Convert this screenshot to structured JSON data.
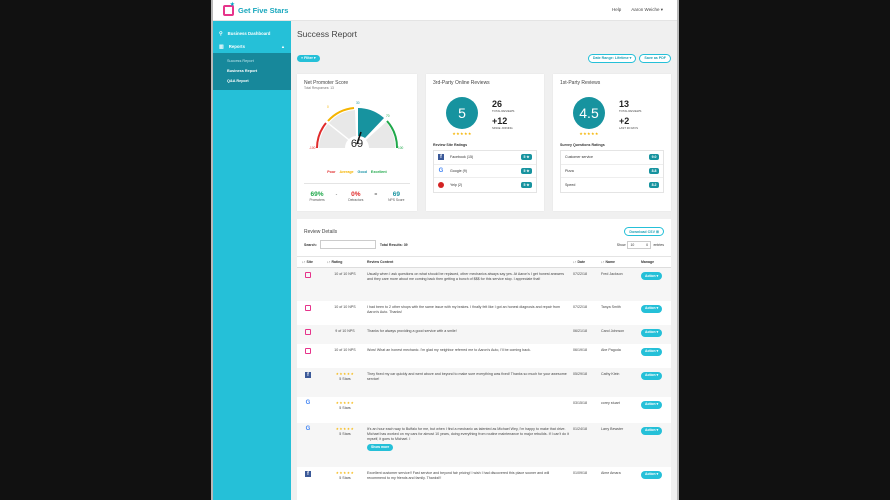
{
  "app": {
    "name": "Get Five Stars",
    "colors": {
      "accent": "#25c0d8",
      "teal": "#17939f",
      "pink": "#e6348b",
      "poor": "#e02b2b",
      "average": "#f5b400",
      "good": "#1793a7",
      "excellent": "#1fa84a"
    }
  },
  "topbar": {
    "help": "Help",
    "user": "Aaron Weiche"
  },
  "sidebar": {
    "items": [
      {
        "label": "Business Dashboard",
        "icon": "map-pin-icon"
      },
      {
        "label": "Reports",
        "icon": "bar-chart-icon"
      }
    ],
    "sub": [
      {
        "label": "Success Report"
      },
      {
        "label": "Business Report"
      },
      {
        "label": "Q&A Report"
      }
    ]
  },
  "page": {
    "title": "Success Report",
    "filter": "≡ Filter ▾",
    "date_range": "Date Range: Lifetime ▾",
    "save_pdf": "Save as PDF"
  },
  "nps": {
    "title": "Net Promoter Score",
    "total": "Total Responses: 13",
    "score": "69",
    "ticks": [
      "-100",
      "0",
      "30",
      "70",
      "100"
    ],
    "legend": [
      "Poor",
      "Average",
      "Good",
      "Excellent"
    ],
    "promoters": "69%",
    "promoters_label": "Promoters",
    "detractors": "0%",
    "detractors_label": "Detractors",
    "nps": "69",
    "nps_label": "NPS Score",
    "minus": "-",
    "equals": "="
  },
  "third": {
    "title": "3rd-Party Online Reviews",
    "rating": "5",
    "stars": "★★★★★",
    "total": "26",
    "total_label": "TOTAL REVIEWS",
    "delta": "+12",
    "delta_label": "SINCE JOINING",
    "section": "Review Site Ratings",
    "sites": [
      {
        "name": "Facebook (15)",
        "rating": "5 ★"
      },
      {
        "name": "Google (9)",
        "rating": "5 ★"
      },
      {
        "name": "Yelp (2)",
        "rating": "5 ★"
      }
    ]
  },
  "first": {
    "title": "1st-Party Reviews",
    "rating": "4.5",
    "stars": "★★★★★",
    "total": "13",
    "total_label": "TOTAL REVIEWS",
    "delta": "+2",
    "delta_label": "LAST 30 DAYS",
    "section": "Survey Questions Ratings",
    "questions": [
      {
        "name": "Customer service",
        "rating": "9.0"
      },
      {
        "name": "Pizza",
        "rating": "8.8"
      },
      {
        "name": "Speed",
        "rating": "8.2"
      }
    ]
  },
  "details": {
    "title": "Review Details",
    "download": "Download CSV ⊞",
    "search_label": "Search:",
    "search_value": "",
    "total": "Total Results: 39",
    "show": "Show",
    "entries_value": "10",
    "entries": "entries",
    "columns": [
      "↓↑ Site",
      "↓↑ Rating",
      "Review Content",
      "↓↑ Date",
      "↓↑ Name",
      "Manage"
    ],
    "rows": [
      {
        "site": "gfs",
        "rating": "10 of 10 NPS",
        "stars": "",
        "content": "Usually when I ask questions on what should be replaced, other mechanics always say yes. At Aaron's I get honest answers and they care more about me coming back then getting a bunch of $$$ for this service stop. I appreciate that!",
        "date": "07/22/18",
        "name": "Fred Jackson",
        "action": "Action ▾",
        "more": ""
      },
      {
        "site": "gfs",
        "rating": "10 of 10 NPS",
        "stars": "",
        "content": "I had been to 2 other shops with the same issue with my brakes. I finally felt like I got an honest diagnosis and repair from Aaron's Auto. Thanks!",
        "date": "07/22/18",
        "name": "Tanya Smith",
        "action": "Action ▾",
        "more": ""
      },
      {
        "site": "gfs",
        "rating": "9 of 10 NPS",
        "stars": "",
        "content": "Thanks for always providing a good service with a smile!",
        "date": "06/21/18",
        "name": "Carol Johnson",
        "action": "Action ▾",
        "more": ""
      },
      {
        "site": "gfs",
        "rating": "10 of 10 NPS",
        "stars": "",
        "content": "Wow! What an honest mechanic. I'm glad my neighbor referred me to Aaron's Auto, I'll be coming back.",
        "date": "06/19/18",
        "name": "Abe Pagoda",
        "action": "Action ▾",
        "more": ""
      },
      {
        "site": "facebook",
        "rating": "5 Stars",
        "stars": "★★★★★",
        "content": "They fixed my car quickly and went above and beyond to make sure everything was fixed! Thanks so much for your awesome service!",
        "date": "05/29/18",
        "name": "Cathy Klein",
        "action": "Action ▾",
        "more": ""
      },
      {
        "site": "google",
        "rating": "5 Stars",
        "stars": "★★★★★",
        "content": "",
        "date": "03/15/18",
        "name": "corey stuart",
        "action": "Action ▾",
        "more": ""
      },
      {
        "site": "google",
        "rating": "5 Stars",
        "stars": "★★★★★",
        "content": "It's an hour each way to Buffalo for me, but when I find a mechanic as talented as Michael Wey, I'm happy to make that drive. Michael has worked on my cars for almost 10 years, doing everything from routine maintenance to major rebuilds. If I can't do it myself, it goes to Michael. I",
        "date": "01/24/18",
        "name": "Larry Bewster",
        "action": "Action ▾",
        "more": "Show more"
      },
      {
        "site": "facebook",
        "rating": "5 Stars",
        "stars": "★★★★★",
        "content": "Excellent customer service!! Fast service and beyond fair pricing! I wish I had discovered this place sooner and will recommend to my friends and family. Thanks!!!",
        "date": "01/09/18",
        "name": "Aime Amara",
        "action": "Action ▾",
        "more": ""
      }
    ]
  }
}
